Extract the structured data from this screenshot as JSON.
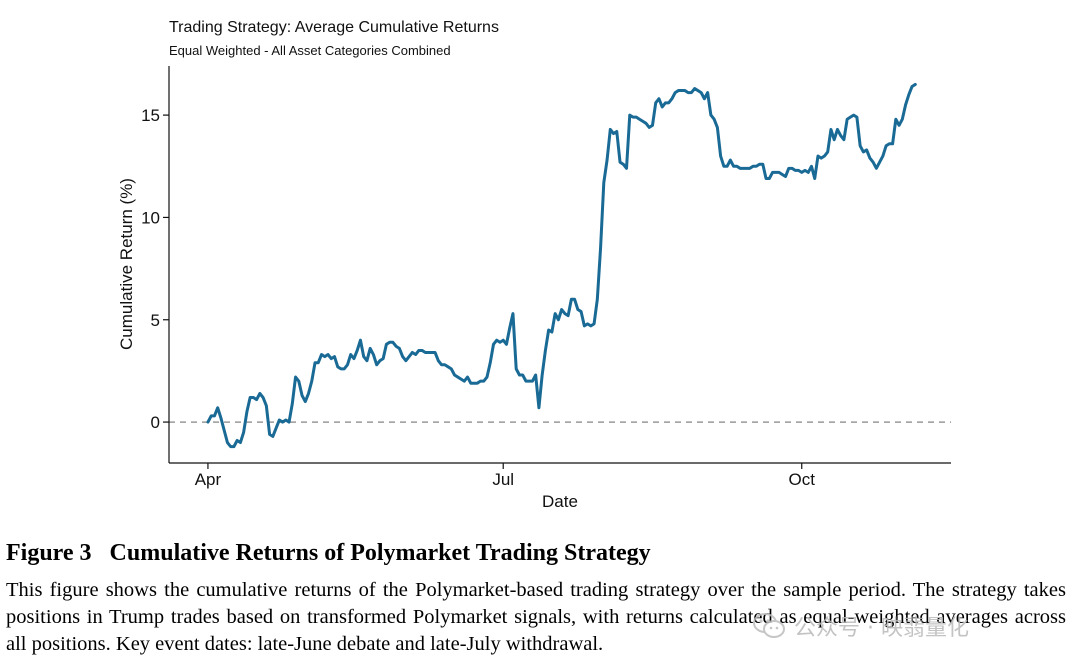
{
  "chart_data": {
    "type": "line",
    "title": "Trading Strategy: Average Cumulative Returns",
    "subtitle": "Equal Weighted - All Asset Categories Combined",
    "xlabel": "Date",
    "ylabel": "Cumulative Return (%)",
    "x_ticks": [
      {
        "label": "Apr",
        "date": "2024-04-01"
      },
      {
        "label": "Jul",
        "date": "2024-07-01"
      },
      {
        "label": "Oct",
        "date": "2024-10-01"
      }
    ],
    "y_ticks": [
      0,
      5,
      10,
      15
    ],
    "ylim": [
      -2,
      17.4
    ],
    "xlim": [
      "2024-03-20",
      "2024-11-16"
    ],
    "reference_line": {
      "y": 0,
      "style": "dashed",
      "color": "#999999"
    },
    "grid": false,
    "legend": "none",
    "series": [
      {
        "color": "#1a6a96",
        "points": [
          [
            "2024-04-01",
            0.0
          ],
          [
            "2024-04-02",
            0.3
          ],
          [
            "2024-04-03",
            0.3
          ],
          [
            "2024-04-04",
            0.7
          ],
          [
            "2024-04-05",
            0.2
          ],
          [
            "2024-04-06",
            -0.4
          ],
          [
            "2024-04-07",
            -1.0
          ],
          [
            "2024-04-08",
            -1.2
          ],
          [
            "2024-04-09",
            -1.2
          ],
          [
            "2024-04-10",
            -0.9
          ],
          [
            "2024-04-11",
            -1.0
          ],
          [
            "2024-04-12",
            -0.5
          ],
          [
            "2024-04-13",
            0.5
          ],
          [
            "2024-04-14",
            1.2
          ],
          [
            "2024-04-15",
            1.2
          ],
          [
            "2024-04-16",
            1.1
          ],
          [
            "2024-04-17",
            1.4
          ],
          [
            "2024-04-18",
            1.2
          ],
          [
            "2024-04-19",
            0.8
          ],
          [
            "2024-04-20",
            -0.6
          ],
          [
            "2024-04-21",
            -0.7
          ],
          [
            "2024-04-22",
            -0.3
          ],
          [
            "2024-04-23",
            0.1
          ],
          [
            "2024-04-24",
            0.0
          ],
          [
            "2024-04-25",
            0.1
          ],
          [
            "2024-04-26",
            0.0
          ],
          [
            "2024-04-27",
            0.9
          ],
          [
            "2024-04-28",
            2.2
          ],
          [
            "2024-04-29",
            2.0
          ],
          [
            "2024-04-30",
            1.3
          ],
          [
            "2024-05-01",
            1.0
          ],
          [
            "2024-05-02",
            1.4
          ],
          [
            "2024-05-03",
            2.0
          ],
          [
            "2024-05-04",
            2.9
          ],
          [
            "2024-05-05",
            2.9
          ],
          [
            "2024-05-06",
            3.3
          ],
          [
            "2024-05-07",
            3.2
          ],
          [
            "2024-05-08",
            3.3
          ],
          [
            "2024-05-09",
            3.1
          ],
          [
            "2024-05-10",
            3.2
          ],
          [
            "2024-05-11",
            2.7
          ],
          [
            "2024-05-12",
            2.6
          ],
          [
            "2024-05-13",
            2.6
          ],
          [
            "2024-05-14",
            2.8
          ],
          [
            "2024-05-15",
            3.3
          ],
          [
            "2024-05-16",
            3.1
          ],
          [
            "2024-05-17",
            3.5
          ],
          [
            "2024-05-18",
            4.0
          ],
          [
            "2024-05-19",
            3.2
          ],
          [
            "2024-05-20",
            3.0
          ],
          [
            "2024-05-21",
            3.6
          ],
          [
            "2024-05-22",
            3.3
          ],
          [
            "2024-05-23",
            2.8
          ],
          [
            "2024-05-24",
            3.0
          ],
          [
            "2024-05-25",
            3.1
          ],
          [
            "2024-05-26",
            3.8
          ],
          [
            "2024-05-27",
            3.9
          ],
          [
            "2024-05-28",
            3.9
          ],
          [
            "2024-05-29",
            3.7
          ],
          [
            "2024-05-30",
            3.6
          ],
          [
            "2024-05-31",
            3.2
          ],
          [
            "2024-06-01",
            3.0
          ],
          [
            "2024-06-02",
            3.2
          ],
          [
            "2024-06-03",
            3.4
          ],
          [
            "2024-06-04",
            3.3
          ],
          [
            "2024-06-05",
            3.5
          ],
          [
            "2024-06-06",
            3.5
          ],
          [
            "2024-06-07",
            3.4
          ],
          [
            "2024-06-08",
            3.4
          ],
          [
            "2024-06-09",
            3.4
          ],
          [
            "2024-06-10",
            3.4
          ],
          [
            "2024-06-11",
            3.0
          ],
          [
            "2024-06-12",
            2.8
          ],
          [
            "2024-06-13",
            2.8
          ],
          [
            "2024-06-14",
            2.7
          ],
          [
            "2024-06-15",
            2.6
          ],
          [
            "2024-06-16",
            2.3
          ],
          [
            "2024-06-17",
            2.2
          ],
          [
            "2024-06-18",
            2.1
          ],
          [
            "2024-06-19",
            2.0
          ],
          [
            "2024-06-20",
            2.2
          ],
          [
            "2024-06-21",
            1.9
          ],
          [
            "2024-06-22",
            1.9
          ],
          [
            "2024-06-23",
            1.9
          ],
          [
            "2024-06-24",
            2.0
          ],
          [
            "2024-06-25",
            2.0
          ],
          [
            "2024-06-26",
            2.2
          ],
          [
            "2024-06-27",
            2.9
          ],
          [
            "2024-06-28",
            3.8
          ],
          [
            "2024-06-29",
            4.0
          ],
          [
            "2024-06-30",
            3.9
          ],
          [
            "2024-07-01",
            4.0
          ],
          [
            "2024-07-02",
            3.8
          ],
          [
            "2024-07-03",
            4.6
          ],
          [
            "2024-07-04",
            5.3
          ],
          [
            "2024-07-05",
            2.6
          ],
          [
            "2024-07-06",
            2.3
          ],
          [
            "2024-07-07",
            2.3
          ],
          [
            "2024-07-08",
            2.0
          ],
          [
            "2024-07-09",
            2.0
          ],
          [
            "2024-07-10",
            2.0
          ],
          [
            "2024-07-11",
            2.3
          ],
          [
            "2024-07-12",
            0.7
          ],
          [
            "2024-07-13",
            2.3
          ],
          [
            "2024-07-14",
            3.5
          ],
          [
            "2024-07-15",
            4.5
          ],
          [
            "2024-07-16",
            4.4
          ],
          [
            "2024-07-17",
            5.3
          ],
          [
            "2024-07-18",
            5.0
          ],
          [
            "2024-07-19",
            5.5
          ],
          [
            "2024-07-20",
            5.3
          ],
          [
            "2024-07-21",
            5.2
          ],
          [
            "2024-07-22",
            6.0
          ],
          [
            "2024-07-23",
            6.0
          ],
          [
            "2024-07-24",
            5.5
          ],
          [
            "2024-07-25",
            5.4
          ],
          [
            "2024-07-26",
            4.7
          ],
          [
            "2024-07-27",
            4.8
          ],
          [
            "2024-07-28",
            4.7
          ],
          [
            "2024-07-29",
            4.8
          ],
          [
            "2024-07-30",
            6.0
          ],
          [
            "2024-07-31",
            8.5
          ],
          [
            "2024-08-01",
            11.7
          ],
          [
            "2024-08-02",
            12.8
          ],
          [
            "2024-08-03",
            14.3
          ],
          [
            "2024-08-04",
            14.1
          ],
          [
            "2024-08-05",
            14.2
          ],
          [
            "2024-08-06",
            12.7
          ],
          [
            "2024-08-07",
            12.6
          ],
          [
            "2024-08-08",
            12.4
          ],
          [
            "2024-08-09",
            15.0
          ],
          [
            "2024-08-10",
            14.9
          ],
          [
            "2024-08-11",
            14.9
          ],
          [
            "2024-08-12",
            14.8
          ],
          [
            "2024-08-13",
            14.7
          ],
          [
            "2024-08-14",
            14.6
          ],
          [
            "2024-08-15",
            14.4
          ],
          [
            "2024-08-16",
            14.5
          ],
          [
            "2024-08-17",
            15.6
          ],
          [
            "2024-08-18",
            15.8
          ],
          [
            "2024-08-19",
            15.4
          ],
          [
            "2024-08-20",
            15.6
          ],
          [
            "2024-08-21",
            15.6
          ],
          [
            "2024-08-22",
            15.8
          ],
          [
            "2024-08-23",
            16.1
          ],
          [
            "2024-08-24",
            16.2
          ],
          [
            "2024-08-25",
            16.2
          ],
          [
            "2024-08-26",
            16.2
          ],
          [
            "2024-08-27",
            16.1
          ],
          [
            "2024-08-28",
            16.1
          ],
          [
            "2024-08-29",
            16.3
          ],
          [
            "2024-08-30",
            16.2
          ],
          [
            "2024-08-31",
            16.1
          ],
          [
            "2024-09-01",
            15.8
          ],
          [
            "2024-09-02",
            16.1
          ],
          [
            "2024-09-03",
            15.0
          ],
          [
            "2024-09-04",
            14.8
          ],
          [
            "2024-09-05",
            14.4
          ],
          [
            "2024-09-06",
            13.0
          ],
          [
            "2024-09-07",
            12.5
          ],
          [
            "2024-09-08",
            12.5
          ],
          [
            "2024-09-09",
            12.8
          ],
          [
            "2024-09-10",
            12.5
          ],
          [
            "2024-09-11",
            12.5
          ],
          [
            "2024-09-12",
            12.4
          ],
          [
            "2024-09-13",
            12.4
          ],
          [
            "2024-09-14",
            12.4
          ],
          [
            "2024-09-15",
            12.4
          ],
          [
            "2024-09-16",
            12.5
          ],
          [
            "2024-09-17",
            12.5
          ],
          [
            "2024-09-18",
            12.6
          ],
          [
            "2024-09-19",
            12.6
          ],
          [
            "2024-09-20",
            11.9
          ],
          [
            "2024-09-21",
            11.9
          ],
          [
            "2024-09-22",
            12.2
          ],
          [
            "2024-09-23",
            12.2
          ],
          [
            "2024-09-24",
            12.2
          ],
          [
            "2024-09-25",
            12.1
          ],
          [
            "2024-09-26",
            12.0
          ],
          [
            "2024-09-27",
            12.4
          ],
          [
            "2024-09-28",
            12.4
          ],
          [
            "2024-09-29",
            12.3
          ],
          [
            "2024-09-30",
            12.3
          ],
          [
            "2024-10-01",
            12.2
          ],
          [
            "2024-10-02",
            12.3
          ],
          [
            "2024-10-03",
            12.2
          ],
          [
            "2024-10-04",
            12.5
          ],
          [
            "2024-10-05",
            11.9
          ],
          [
            "2024-10-06",
            13.0
          ],
          [
            "2024-10-07",
            12.9
          ],
          [
            "2024-10-08",
            13.0
          ],
          [
            "2024-10-09",
            13.2
          ],
          [
            "2024-10-10",
            14.3
          ],
          [
            "2024-10-11",
            13.8
          ],
          [
            "2024-10-12",
            14.3
          ],
          [
            "2024-10-13",
            14.0
          ],
          [
            "2024-10-14",
            13.8
          ],
          [
            "2024-10-15",
            14.8
          ],
          [
            "2024-10-16",
            14.9
          ],
          [
            "2024-10-17",
            15.0
          ],
          [
            "2024-10-18",
            14.9
          ],
          [
            "2024-10-19",
            13.5
          ],
          [
            "2024-10-20",
            13.2
          ],
          [
            "2024-10-21",
            13.3
          ],
          [
            "2024-10-22",
            12.9
          ],
          [
            "2024-10-23",
            12.7
          ],
          [
            "2024-10-24",
            12.4
          ],
          [
            "2024-10-25",
            12.7
          ],
          [
            "2024-10-26",
            13.0
          ],
          [
            "2024-10-27",
            13.5
          ],
          [
            "2024-10-28",
            13.6
          ],
          [
            "2024-10-29",
            13.6
          ],
          [
            "2024-10-30",
            14.8
          ],
          [
            "2024-10-31",
            14.5
          ],
          [
            "2024-11-01",
            14.8
          ],
          [
            "2024-11-02",
            15.5
          ],
          [
            "2024-11-03",
            16.0
          ],
          [
            "2024-11-04",
            16.4
          ],
          [
            "2024-11-05",
            16.5
          ]
        ]
      }
    ]
  },
  "caption": {
    "figure_number": "Figure 3",
    "figure_title": "Cumulative Returns of Polymarket Trading Strategy",
    "body": "This figure shows the cumulative returns of the Polymarket-based trading strategy over the sample period. The strategy takes positions in Trump trades based on transformed Polymarket signals, with returns calculated as equal-weighted averages across all positions. Key event dates: late-June debate and late-July withdrawal."
  },
  "watermark": {
    "text": "公众号 · 映翡量化",
    "icon": "wechat-icon",
    "color": "#b9b9b9"
  }
}
